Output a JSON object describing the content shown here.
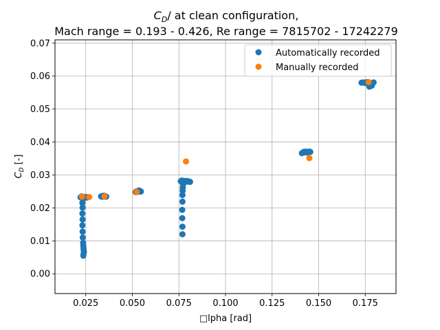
{
  "chart_data": {
    "type": "scatter",
    "title": {
      "prefix": "C",
      "subscript": "D",
      "suffix": "/ at clean configuration,",
      "line2": "Mach range = 0.193 - 0.426, Re range = 7815702 - 17242279"
    },
    "xlabel": "□lpha [rad]",
    "ylabel": {
      "prefix": "C",
      "subscript": "D",
      "suffix": " [-]"
    },
    "xlim": [
      0.0085,
      0.1915
    ],
    "ylim": [
      -0.006,
      0.071
    ],
    "xticks": [
      0.025,
      0.05,
      0.075,
      0.1,
      0.125,
      0.15,
      0.175
    ],
    "xtick_labels": [
      "0.025",
      "0.050",
      "0.075",
      "0.100",
      "0.125",
      "0.150",
      "0.175"
    ],
    "yticks": [
      0.0,
      0.01,
      0.02,
      0.03,
      0.04,
      0.05,
      0.06,
      0.07
    ],
    "ytick_labels": [
      "0.00",
      "0.01",
      "0.02",
      "0.03",
      "0.04",
      "0.05",
      "0.06",
      "0.07"
    ],
    "grid": true,
    "legend_position": "top-right",
    "series": [
      {
        "name": "Automatically recorded",
        "color": "#1f77b4",
        "points": [
          [
            0.0222,
            0.0232
          ],
          [
            0.0226,
            0.0231
          ],
          [
            0.023,
            0.0233
          ],
          [
            0.0234,
            0.0232
          ],
          [
            0.0238,
            0.0231
          ],
          [
            0.0242,
            0.0233
          ],
          [
            0.0246,
            0.0232
          ],
          [
            0.025,
            0.0231
          ],
          [
            0.0254,
            0.0233
          ],
          [
            0.0258,
            0.0232
          ],
          [
            0.0228,
            0.0235
          ],
          [
            0.024,
            0.0229
          ],
          [
            0.0232,
            0.0215
          ],
          [
            0.0233,
            0.0201
          ],
          [
            0.0232,
            0.0183
          ],
          [
            0.0233,
            0.0165
          ],
          [
            0.0232,
            0.0147
          ],
          [
            0.0233,
            0.0128
          ],
          [
            0.0234,
            0.011
          ],
          [
            0.0236,
            0.0094
          ],
          [
            0.0237,
            0.0085
          ],
          [
            0.0238,
            0.0078
          ],
          [
            0.0239,
            0.0072
          ],
          [
            0.024,
            0.0066
          ],
          [
            0.0238,
            0.0059
          ],
          [
            0.0237,
            0.0055
          ],
          [
            0.0332,
            0.0235
          ],
          [
            0.0336,
            0.0234
          ],
          [
            0.034,
            0.0236
          ],
          [
            0.0344,
            0.0235
          ],
          [
            0.0348,
            0.0234
          ],
          [
            0.0352,
            0.0236
          ],
          [
            0.0356,
            0.0235
          ],
          [
            0.036,
            0.0234
          ],
          [
            0.0346,
            0.0237
          ],
          [
            0.0518,
            0.0248
          ],
          [
            0.0522,
            0.025
          ],
          [
            0.0526,
            0.0249
          ],
          [
            0.053,
            0.0251
          ],
          [
            0.0534,
            0.025
          ],
          [
            0.0538,
            0.0249
          ],
          [
            0.0542,
            0.0251
          ],
          [
            0.0546,
            0.025
          ],
          [
            0.0536,
            0.0253
          ],
          [
            0.076,
            0.0281
          ],
          [
            0.0765,
            0.0283
          ],
          [
            0.077,
            0.028
          ],
          [
            0.0775,
            0.0282
          ],
          [
            0.078,
            0.0281
          ],
          [
            0.0785,
            0.0279
          ],
          [
            0.079,
            0.0282
          ],
          [
            0.0795,
            0.028
          ],
          [
            0.08,
            0.0281
          ],
          [
            0.0805,
            0.028
          ],
          [
            0.081,
            0.0279
          ],
          [
            0.0772,
            0.0272
          ],
          [
            0.0771,
            0.0262
          ],
          [
            0.077,
            0.0252
          ],
          [
            0.0769,
            0.0239
          ],
          [
            0.0769,
            0.0219
          ],
          [
            0.0768,
            0.0194
          ],
          [
            0.0768,
            0.0169
          ],
          [
            0.0769,
            0.0143
          ],
          [
            0.0769,
            0.012
          ],
          [
            0.141,
            0.0366
          ],
          [
            0.1415,
            0.0368
          ],
          [
            0.142,
            0.037
          ],
          [
            0.1425,
            0.0369
          ],
          [
            0.143,
            0.0371
          ],
          [
            0.1435,
            0.0368
          ],
          [
            0.144,
            0.037
          ],
          [
            0.1445,
            0.0369
          ],
          [
            0.145,
            0.0371
          ],
          [
            0.1455,
            0.037
          ],
          [
            0.173,
            0.058
          ],
          [
            0.174,
            0.0581
          ],
          [
            0.175,
            0.0579
          ],
          [
            0.176,
            0.0582
          ],
          [
            0.177,
            0.058
          ],
          [
            0.1775,
            0.0577
          ],
          [
            0.178,
            0.0574
          ],
          [
            0.1785,
            0.0571
          ],
          [
            0.179,
            0.0578
          ],
          [
            0.1795,
            0.0581
          ],
          [
            0.1772,
            0.0568
          ]
        ]
      },
      {
        "name": "Manually recorded",
        "color": "#ff7f0e",
        "points": [
          [
            0.023,
            0.0234
          ],
          [
            0.0268,
            0.0233
          ],
          [
            0.0351,
            0.0235
          ],
          [
            0.0523,
            0.0248
          ],
          [
            0.0788,
            0.0341
          ],
          [
            0.145,
            0.0351
          ],
          [
            0.1768,
            0.0582
          ]
        ]
      }
    ]
  }
}
